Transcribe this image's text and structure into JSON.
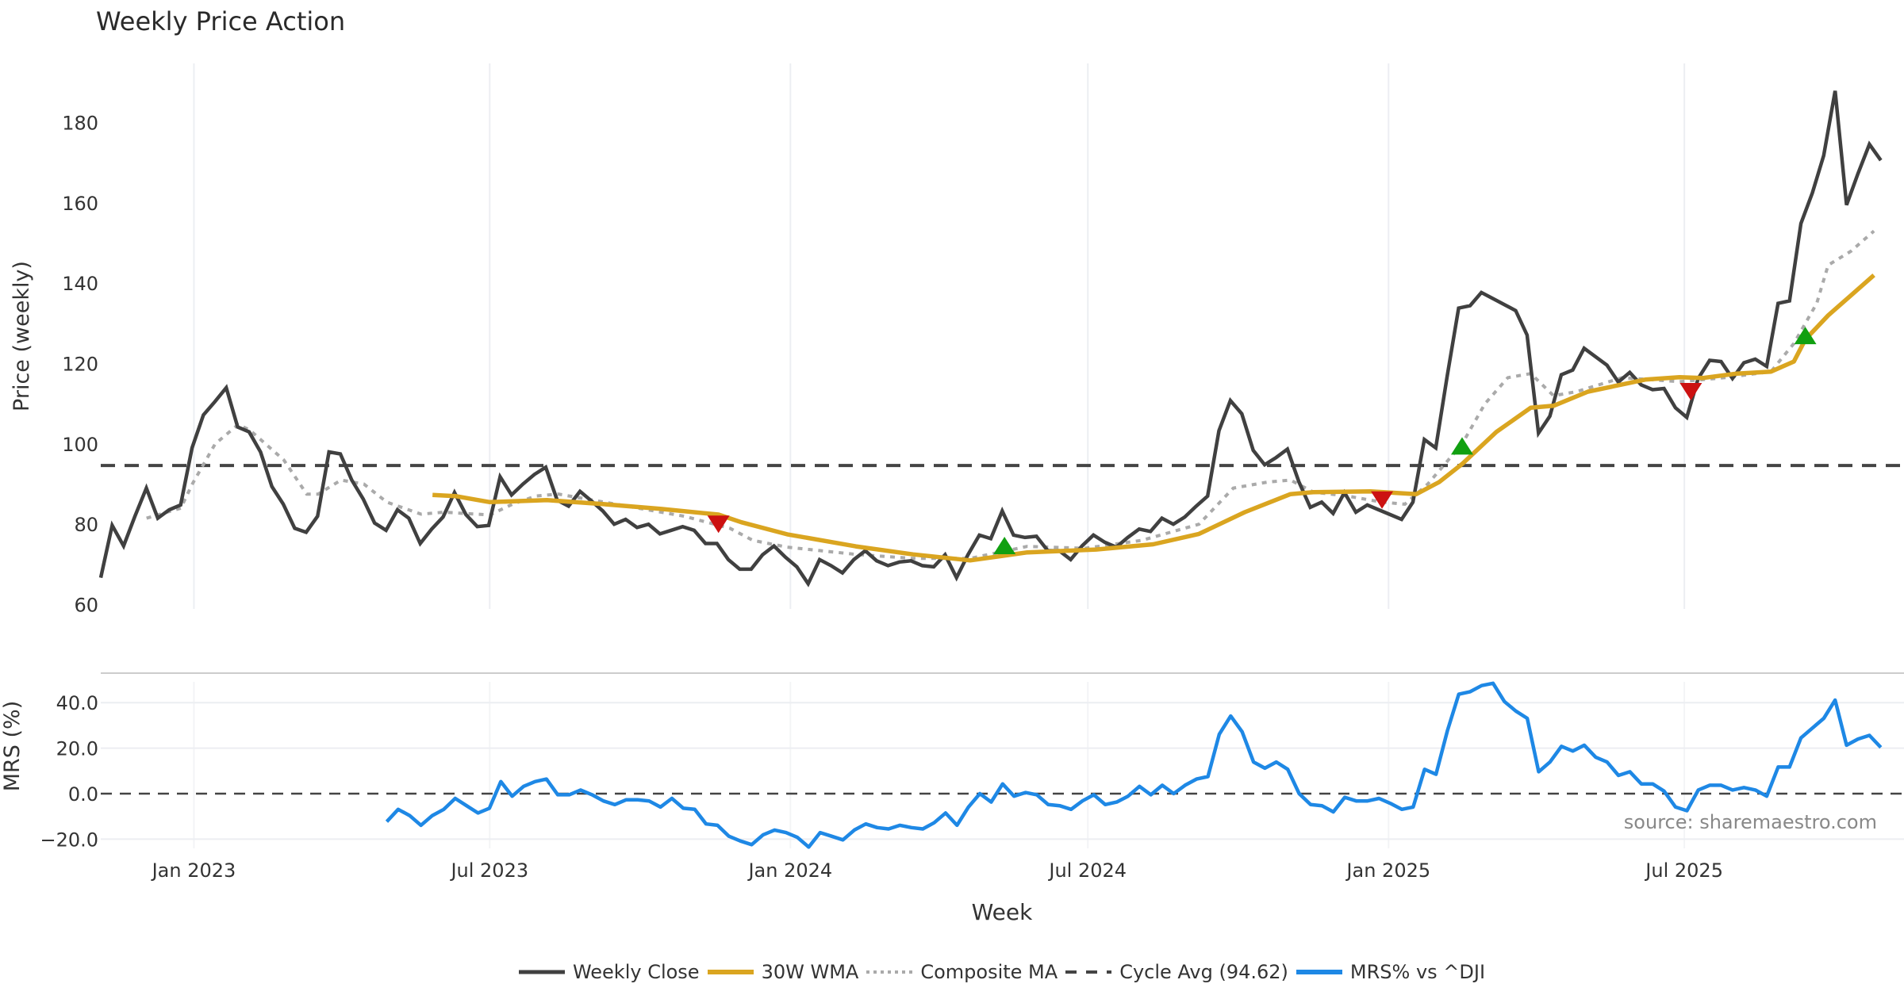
{
  "chart_data": {
    "type": "line",
    "title": "Weekly Price Action",
    "xlabel": "Week",
    "x_start": "2022-11-05",
    "x_step": "1 week",
    "x_ticks": [
      "Jan 2023",
      "Jul 2023",
      "Jan 2024",
      "Jul 2024",
      "Jan 2025",
      "Jul 2025"
    ],
    "x_tick_dates": [
      "2023-01-01",
      "2023-07-01",
      "2024-01-01",
      "2024-07-01",
      "2025-01-01",
      "2025-07-01"
    ],
    "price_panel": {
      "ylabel": "Price (weekly)",
      "ylim": [
        60,
        193
      ],
      "yticks": [
        "60",
        "80",
        "100",
        "120",
        "140",
        "160",
        "180"
      ],
      "grid": "vertical",
      "series": [
        {
          "name": "Weekly Close",
          "color": "#404040",
          "style": "solid",
          "values": [
            66.7,
            79.7,
            74.6,
            82,
            89,
            81.5,
            83.6,
            84.8,
            99,
            107.2,
            110.5,
            114,
            104.2,
            103,
            98,
            89.4,
            85,
            79,
            78,
            82,
            98,
            97.5,
            91,
            86.3,
            80.3,
            78.5,
            83.6,
            81.5,
            75.2,
            78.8,
            81.8,
            87.9,
            82.4,
            79.4,
            79.7,
            91.8,
            87.3,
            90,
            92.4,
            94.2,
            86,
            84.5,
            88.2,
            85.8,
            83.3,
            80,
            81.2,
            79.2,
            80,
            77.6,
            78.5,
            79.4,
            78.5,
            75.2,
            75.2,
            71.2,
            68.8,
            68.8,
            72.4,
            74.6,
            71.8,
            69.4,
            65.2,
            71.2,
            69.7,
            67.9,
            71.2,
            73.4,
            70.9,
            69.7,
            70.6,
            70.9,
            69.7,
            69.4,
            72.4,
            66.7,
            72.4,
            77.3,
            76.4,
            83.3,
            77.3,
            76.7,
            77,
            73.4,
            73.4,
            71.2,
            74.6,
            77.3,
            75.5,
            74.3,
            76.7,
            78.8,
            78.2,
            81.5,
            80,
            81.8,
            84.5,
            87,
            103.3,
            110.8,
            107.5,
            98.4,
            94.8,
            96.6,
            98.7,
            90.6,
            84.2,
            85.5,
            82.7,
            87.9,
            83,
            84.8,
            83.6,
            82.4,
            81.2,
            85.5,
            101.1,
            99,
            116.9,
            133.8,
            134.4,
            137.7,
            136.2,
            134.7,
            133.2,
            127.1,
            102.7,
            106.9,
            117.2,
            118.4,
            123.8,
            121.7,
            119.6,
            115.4,
            117.8,
            114.7,
            113.5,
            113.8,
            109,
            106.6,
            116.3,
            120.8,
            120.5,
            116.3,
            120.2,
            121.1,
            119.3,
            135,
            135.6,
            154.9,
            162.5,
            171.8,
            187.9,
            159.5,
            167.3,
            174.6,
            170.6
          ]
        },
        {
          "name": "30W WMA",
          "color": "#DAA520",
          "style": "solid",
          "weeks": [
            29,
            31,
            34,
            39,
            44,
            49,
            54,
            56,
            60,
            66,
            71,
            76,
            81,
            87,
            92,
            96,
            100,
            104,
            106,
            111,
            115,
            117,
            119,
            122,
            125,
            127,
            130,
            135,
            138,
            140,
            143,
            146,
            148,
            149,
            151,
            153,
            155
          ],
          "values": [
            87.3,
            87,
            85.5,
            86,
            85,
            83.8,
            82.4,
            80.5,
            77.5,
            74.5,
            72.5,
            71,
            73,
            73.7,
            75,
            77.6,
            83,
            87.5,
            88,
            88.2,
            87.5,
            90.5,
            95,
            103,
            109,
            109.5,
            113,
            116,
            116.6,
            116.4,
            117.5,
            118,
            120.5,
            126,
            132,
            137,
            142
          ]
        },
        {
          "name": "Composite MA",
          "color": "#AAAAAA",
          "style": "dotted",
          "weeks": [
            4,
            7,
            8,
            10,
            12,
            13,
            16,
            18,
            19,
            21,
            23,
            25,
            28,
            30,
            34,
            36,
            38,
            40,
            44,
            51,
            55,
            57,
            60,
            66,
            71,
            76,
            81,
            86,
            91,
            96,
            99,
            102,
            104,
            106,
            109,
            112,
            114,
            116,
            119,
            121,
            123,
            125,
            127,
            129,
            133,
            138,
            142,
            146,
            148,
            150,
            151,
            153,
            155
          ],
          "values": [
            81.5,
            84,
            90,
            100,
            104.8,
            103.5,
            96,
            87.5,
            87.5,
            91,
            90,
            85.5,
            82.5,
            83,
            82.3,
            85,
            87,
            87.5,
            85.5,
            82,
            79,
            76,
            74.3,
            72.5,
            71.5,
            71.5,
            74.5,
            74,
            76,
            80,
            89,
            90.5,
            91,
            88,
            87,
            85.5,
            85,
            90,
            100,
            110,
            116.5,
            117.5,
            112,
            113,
            116.5,
            115.5,
            116.5,
            118,
            125,
            135,
            144.5,
            148,
            153
          ]
        },
        {
          "name": "Cycle Avg (94.62)",
          "color": "#444444",
          "style": "dashed",
          "value": 94.62
        }
      ],
      "signals": [
        {
          "type": "sell",
          "week": 54,
          "value": 80,
          "color": "#CC1111"
        },
        {
          "type": "buy",
          "week": 79,
          "value": 74.7,
          "color": "#11A011"
        },
        {
          "type": "sell",
          "week": 112,
          "value": 86,
          "color": "#CC1111"
        },
        {
          "type": "buy",
          "week": 119,
          "value": 99.5,
          "color": "#11A011"
        },
        {
          "type": "sell",
          "week": 139,
          "value": 113,
          "color": "#CC1111"
        },
        {
          "type": "buy",
          "week": 149,
          "value": 127,
          "color": "#11A011"
        }
      ]
    },
    "mrs_panel": {
      "ylabel": "MRS (%)",
      "ylim": [
        -26,
        53
      ],
      "yticks": [
        "40.0",
        "20.0",
        "0.0",
        "−20.0"
      ],
      "ytick_values": [
        40,
        20,
        0,
        -20
      ],
      "series": {
        "name": "MRS% vs ^DJI",
        "color": "#1E88E5",
        "start_week": 25,
        "values": [
          -12.3,
          -6.9,
          -9.6,
          -13.9,
          -9.6,
          -6.9,
          -2.1,
          -5.3,
          -8.5,
          -6.4,
          5.3,
          -1.1,
          3.2,
          5.3,
          6.4,
          -0.5,
          -0.5,
          1.6,
          -0.5,
          -3.2,
          -4.8,
          -2.7,
          -2.7,
          -3.2,
          -5.9,
          -2.1,
          -6.4,
          -6.9,
          -13.3,
          -13.9,
          -18.7,
          -20.8,
          -22.4,
          -18.1,
          -16,
          -17.1,
          -19.2,
          -23.5,
          -17.1,
          -18.7,
          -20.3,
          -16,
          -13.3,
          -14.9,
          -15.5,
          -13.9,
          -14.9,
          -15.5,
          -12.8,
          -8.5,
          -13.9,
          -5.9,
          0,
          -3.7,
          4.3,
          -1.1,
          0.5,
          -0.5,
          -4.8,
          -5.3,
          -6.9,
          -3.2,
          -0.5,
          -4.8,
          -3.7,
          -1.1,
          3.2,
          -0.5,
          3.7,
          0,
          3.7,
          6.4,
          7.5,
          26.1,
          34.1,
          27.2,
          13.9,
          11.2,
          13.9,
          10.7,
          0,
          -4.8,
          -5.3,
          -8,
          -1.6,
          -3.2,
          -3.2,
          -2.1,
          -4.3,
          -6.9,
          -5.9,
          10.7,
          8.5,
          27.7,
          43.7,
          44.8,
          47.5,
          48.5,
          40.5,
          36.3,
          33.1,
          9.6,
          13.9,
          20.8,
          18.7,
          21.3,
          16,
          13.9,
          8,
          9.6,
          4.3,
          4.3,
          1.1,
          -5.9,
          -7.5,
          1.6,
          3.7,
          3.7,
          1.6,
          2.7,
          1.6,
          -1.1,
          11.7,
          11.7,
          24.5,
          28.8,
          33.1,
          41.1,
          21.3,
          24,
          25.6,
          20.3
        ]
      },
      "zero_line": 0
    },
    "annotation": "source: sharemaestro.com",
    "legend": [
      "Weekly Close",
      "30W WMA",
      "Composite MA",
      "Cycle Avg (94.62)",
      "MRS% vs ^DJI"
    ],
    "legend_position": "bottom-center"
  }
}
